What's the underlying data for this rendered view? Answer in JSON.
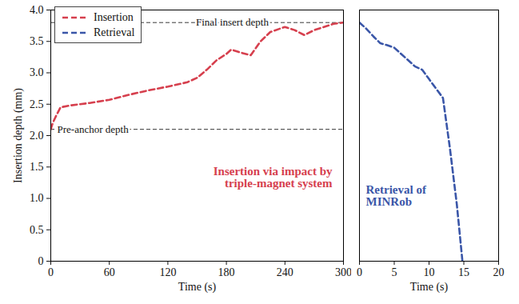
{
  "chart_data": [
    {
      "type": "line",
      "xlabel": "Time (s)",
      "ylabel": "Insertion depth (mm)",
      "x": [
        0,
        2,
        5,
        10,
        20,
        40,
        60,
        80,
        100,
        120,
        140,
        150,
        160,
        170,
        180,
        185,
        195,
        205,
        215,
        225,
        240,
        250,
        260,
        270,
        290,
        300
      ],
      "series": [
        {
          "name": "Insertion",
          "color": "#d6404e",
          "line_style": "dashed",
          "values": [
            2.1,
            2.2,
            2.3,
            2.45,
            2.48,
            2.52,
            2.57,
            2.65,
            2.72,
            2.78,
            2.85,
            2.92,
            3.05,
            3.2,
            3.3,
            3.37,
            3.32,
            3.28,
            3.5,
            3.65,
            3.73,
            3.68,
            3.6,
            3.68,
            3.78,
            3.8
          ]
        }
      ],
      "xlim": [
        0,
        300
      ],
      "xticks": [
        0,
        60,
        120,
        180,
        240,
        300
      ],
      "ylim": [
        0,
        4
      ],
      "yticks": [
        0,
        0.5,
        {
          "value": 1,
          "label": "1.0"
        },
        1.5,
        {
          "value": 2,
          "label": "2.0"
        },
        2.5,
        {
          "value": 3,
          "label": "3.0"
        },
        3.5,
        {
          "value": 4,
          "label": "4.0"
        }
      ],
      "legend": "upper left",
      "reference_lines": [
        {
          "y": 3.8,
          "label": "Final insert depth"
        },
        {
          "y": 2.1,
          "label": "Pre-anchor depth"
        }
      ],
      "annotations": [
        "Insertion via impact by triple-magnet system"
      ]
    },
    {
      "type": "line",
      "xlabel": "Time (s)",
      "x": [
        0,
        1,
        2,
        3,
        4,
        5,
        6,
        7,
        8,
        9,
        10,
        11,
        12,
        13,
        14,
        14.8
      ],
      "series": [
        {
          "name": "Retrieval",
          "color": "#3a56a8",
          "line_style": "dashed",
          "values": [
            3.8,
            3.7,
            3.58,
            3.47,
            3.44,
            3.4,
            3.3,
            3.2,
            3.1,
            3.05,
            2.9,
            2.75,
            2.6,
            1.8,
            0.9,
            0
          ]
        }
      ],
      "xlim": [
        0,
        20
      ],
      "xticks": [
        0,
        5,
        10,
        15,
        20
      ],
      "ylim": [
        0,
        4
      ],
      "tick_labels": "x",
      "annotations": [
        "Retrieval of MINRob"
      ]
    }
  ]
}
